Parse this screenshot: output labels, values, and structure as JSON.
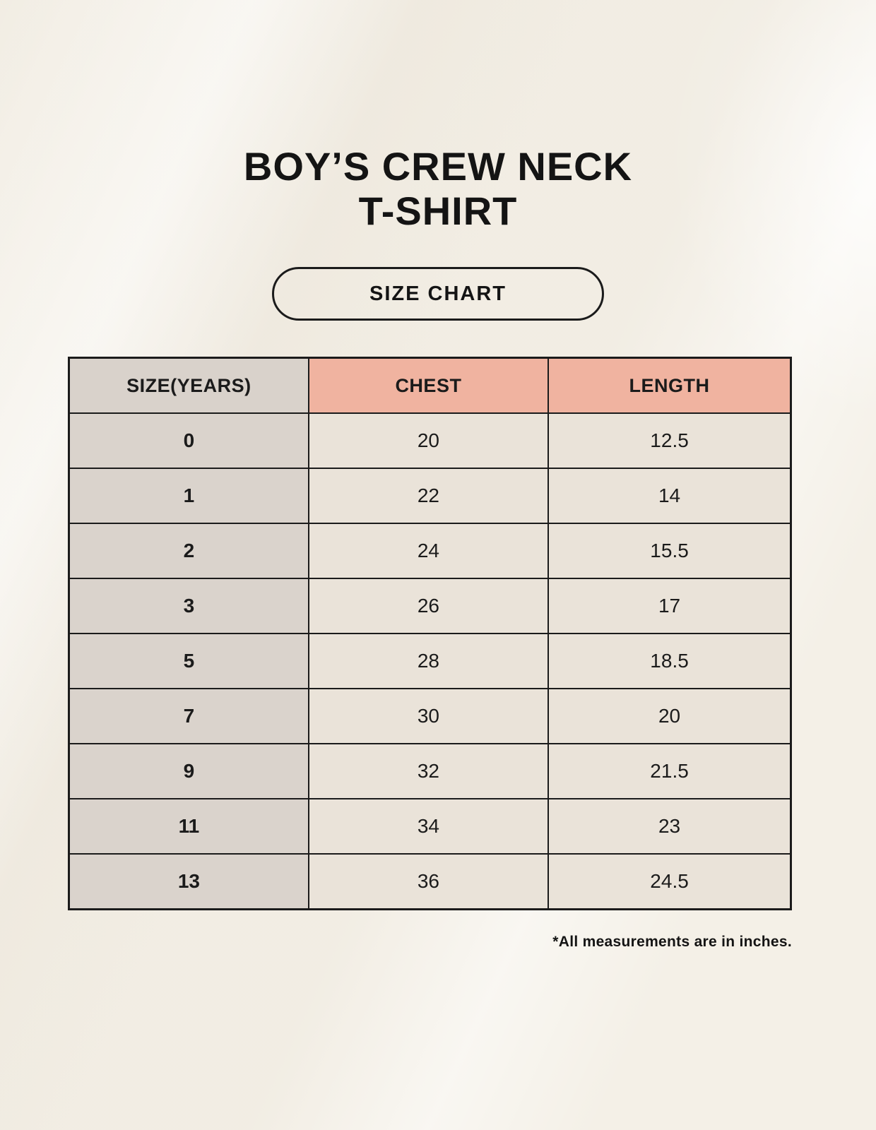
{
  "page": {
    "title_line1": "BOY’S CREW NECK",
    "title_line2": "T-SHIRT",
    "badge_label": "SIZE CHART",
    "footnote": "*All measurements are in inches."
  },
  "colors": {
    "background": "#f4f0e7",
    "header_accent": "#f0b3a0",
    "size_column_gray": "#dad3cc",
    "value_cell_cream": "#eae3d9",
    "border": "#1b1b1b",
    "text": "#141414"
  },
  "chart_data": {
    "type": "table",
    "title": "BOY’S CREW NECK T-SHIRT — SIZE CHART",
    "units": "inches",
    "columns": [
      "SIZE(YEARS)",
      "CHEST",
      "LENGTH"
    ],
    "rows": [
      [
        "0",
        "20",
        "12.5"
      ],
      [
        "1",
        "22",
        "14"
      ],
      [
        "2",
        "24",
        "15.5"
      ],
      [
        "3",
        "26",
        "17"
      ],
      [
        "5",
        "28",
        "18.5"
      ],
      [
        "7",
        "30",
        "20"
      ],
      [
        "9",
        "32",
        "21.5"
      ],
      [
        "11",
        "34",
        "23"
      ],
      [
        "13",
        "36",
        "24.5"
      ]
    ]
  }
}
